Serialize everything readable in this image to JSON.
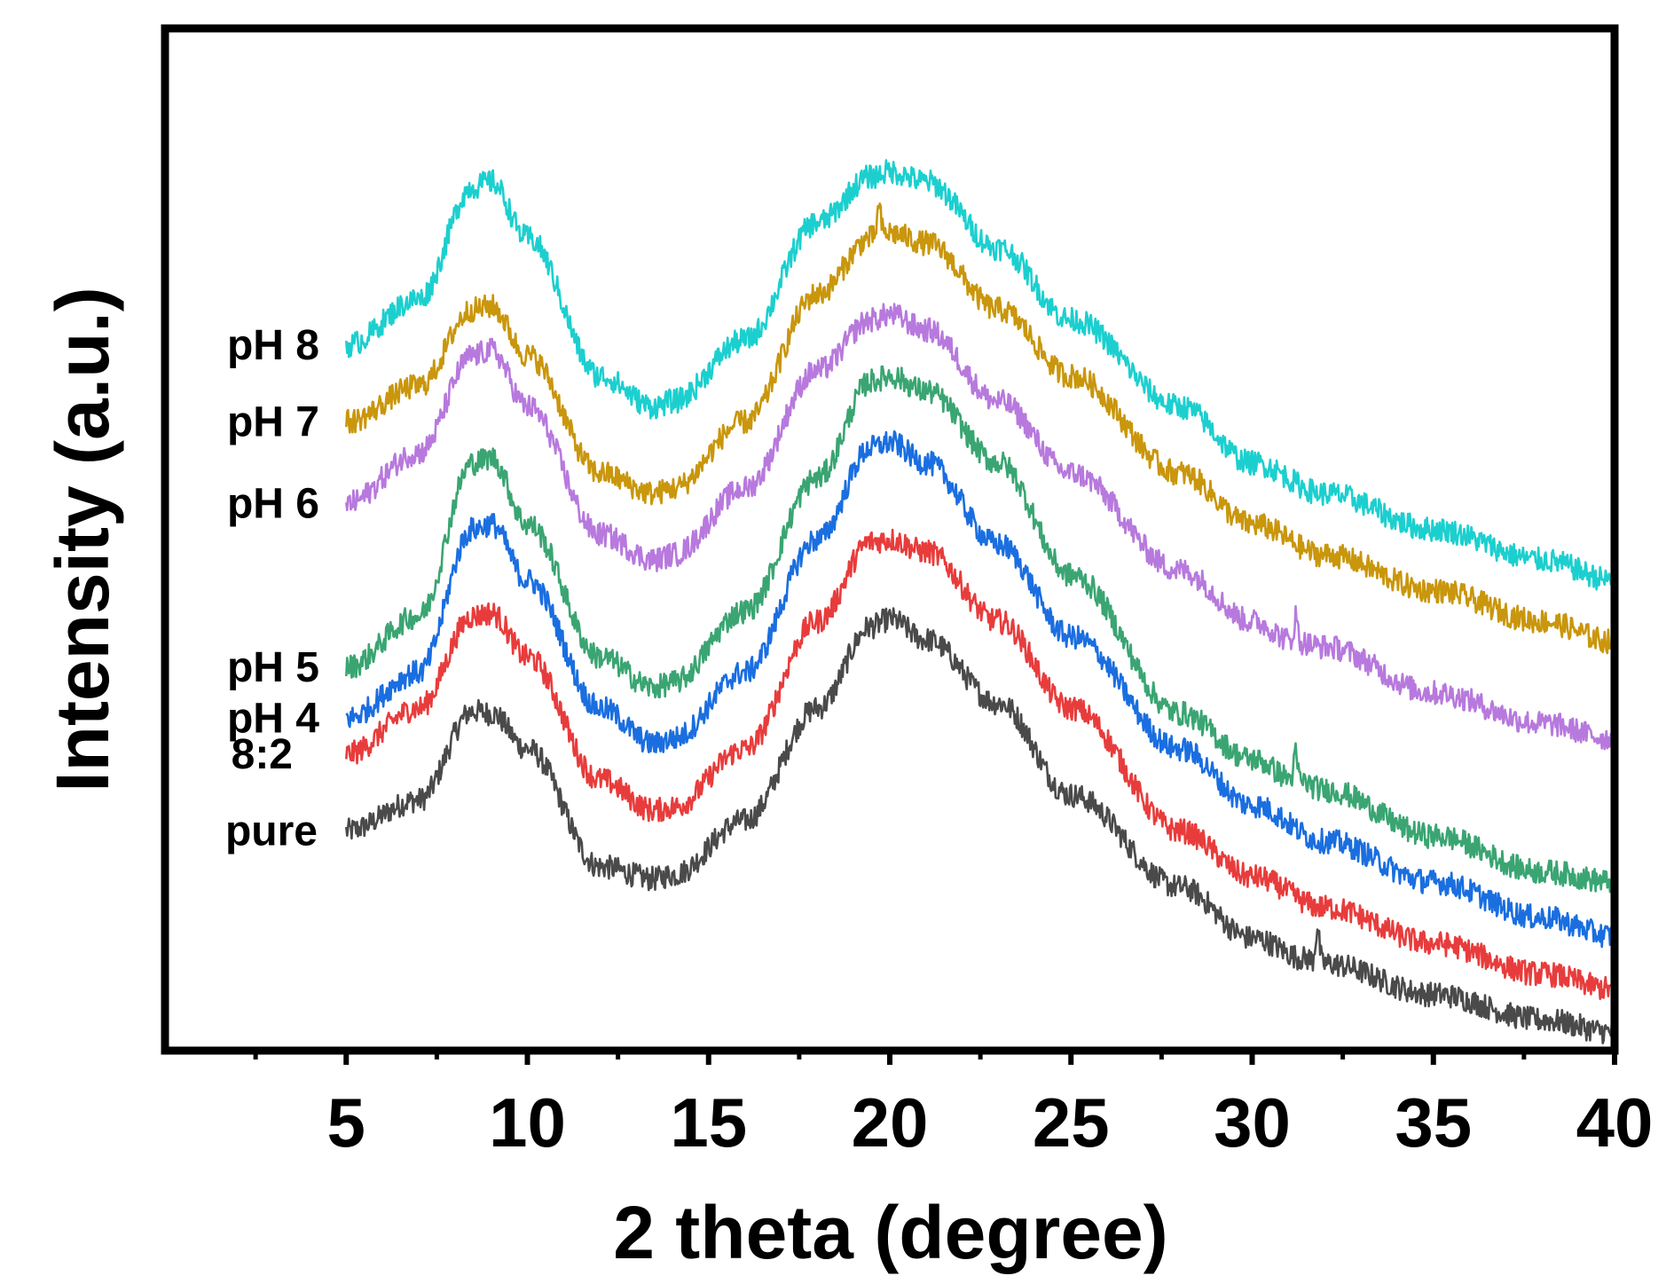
{
  "chart_data": {
    "type": "line",
    "title": "",
    "xlabel": "2 theta (degree)",
    "ylabel": "Intensity (a.u.)",
    "xlim": [
      0,
      40
    ],
    "ylim": [
      0,
      100
    ],
    "x_ticks": [
      5,
      10,
      15,
      20,
      25,
      30,
      35,
      40
    ],
    "x_tick_labels": [
      "5",
      "10",
      "15",
      "20",
      "25",
      "30",
      "35",
      "40"
    ],
    "minor_ticks": [
      2.5,
      7.5,
      12.5,
      17.5,
      22.5,
      27.5,
      32.5,
      37.5
    ],
    "x_range_plotted": [
      5,
      40
    ],
    "grid": false,
    "legend": "inline labels at left of traces",
    "y_units": "arbitrary (a.u.), traces vertically offset",
    "series": [
      {
        "name": "pure",
        "label": "pure",
        "color": "#4a4a4a",
        "offset": 0,
        "noise": 1.2,
        "x": [
          5,
          7,
          8.5,
          9,
          10,
          12,
          13.5,
          14,
          16,
          18,
          19.5,
          20,
          21,
          23,
          25,
          28,
          30,
          31.5,
          32,
          35,
          38,
          40
        ],
        "y": [
          21.5,
          24.5,
          33.2,
          33.0,
          29.5,
          18.0,
          16.8,
          17.2,
          22.5,
          33.5,
          41.5,
          42.2,
          40.2,
          34.0,
          25.0,
          16.0,
          11.0,
          9.0,
          8.5,
          5.5,
          3.0,
          1.8
        ],
        "spikes": [
          {
            "x": 31.8,
            "h": 3.5
          }
        ]
      },
      {
        "name": "8:2",
        "label": "8:2",
        "color": "#e83c3c",
        "offset": 0,
        "noise": 1.2,
        "x": [
          5,
          7,
          8.5,
          9,
          10,
          12,
          13.5,
          14,
          16,
          18,
          19.5,
          20,
          21,
          23,
          25,
          28,
          30,
          32,
          35,
          38,
          40
        ],
        "y": [
          29.0,
          33.5,
          42.5,
          42.8,
          38.5,
          26.5,
          23.5,
          23.8,
          29.5,
          42.0,
          49.8,
          50.0,
          48.8,
          42.0,
          33.5,
          21.5,
          17.0,
          14.0,
          10.5,
          7.5,
          6.0
        ]
      },
      {
        "name": "pH 4",
        "label": "pH 4",
        "color": "#1a6ee0",
        "offset": 0,
        "noise": 1.2,
        "x": [
          5,
          7,
          8.5,
          9,
          10,
          12,
          13.5,
          14,
          16,
          18,
          19.5,
          20,
          21,
          23,
          25,
          28,
          30,
          32,
          35,
          38,
          40
        ],
        "y": [
          32.5,
          37.0,
          51.0,
          51.5,
          46.0,
          33.5,
          30.0,
          30.5,
          37.0,
          50.0,
          59.0,
          59.5,
          57.5,
          49.5,
          40.5,
          29.5,
          24.0,
          20.5,
          16.5,
          13.0,
          11.2
        ]
      },
      {
        "name": "pH 5",
        "label": "pH 5",
        "color": "#3aa572",
        "offset": 0,
        "noise": 1.2,
        "x": [
          5,
          7,
          8.5,
          9,
          10,
          12,
          13.5,
          14,
          16,
          18,
          19.5,
          20,
          21,
          23,
          25,
          28,
          30,
          31.2,
          32,
          35,
          38,
          40
        ],
        "y": [
          37.5,
          42.5,
          57.5,
          58.0,
          51.5,
          38.5,
          35.5,
          36.0,
          43.0,
          56.0,
          65.5,
          66.0,
          64.5,
          57.5,
          46.5,
          33.0,
          28.5,
          26.5,
          25.5,
          21.0,
          17.5,
          16.5
        ],
        "spikes": [
          {
            "x": 31.2,
            "h": 2.5
          }
        ]
      },
      {
        "name": "pH 6",
        "label": "pH 6",
        "color": "#b779dd",
        "offset": 0,
        "noise": 1.2,
        "x": [
          5,
          7,
          8.5,
          9,
          10,
          12,
          13.5,
          14,
          16,
          18,
          19.5,
          20,
          21,
          23,
          25,
          28,
          30,
          31.2,
          32,
          35,
          38,
          40
        ],
        "y": [
          53.5,
          58.5,
          68.0,
          68.5,
          63.0,
          50.5,
          48.0,
          48.5,
          55.0,
          66.5,
          71.5,
          72.0,
          70.5,
          63.5,
          56.5,
          47.0,
          42.0,
          40.0,
          39.5,
          35.0,
          32.0,
          30.5
        ],
        "spikes": [
          {
            "x": 31.2,
            "h": 2.5
          }
        ]
      },
      {
        "name": "pH 7",
        "label": "pH 7",
        "color": "#c9960c",
        "offset": 0,
        "noise": 1.2,
        "x": [
          5,
          7,
          8.5,
          9,
          10,
          12,
          13.5,
          14,
          16,
          18,
          19.5,
          20,
          21,
          23,
          25,
          28,
          30,
          32,
          35,
          38,
          40
        ],
        "y": [
          61.5,
          65.0,
          72.5,
          72.8,
          68.0,
          56.5,
          54.5,
          55.0,
          61.5,
          74.0,
          79.5,
          80.0,
          79.0,
          72.5,
          66.0,
          56.5,
          51.5,
          48.5,
          45.0,
          42.0,
          40.0
        ],
        "spikes": [
          {
            "x": 19.7,
            "h": 3.0
          }
        ]
      },
      {
        "name": "pH 8",
        "label": "pH 8",
        "color": "#1ccfcf",
        "offset": 0,
        "noise": 1.2,
        "x": [
          5,
          7,
          8.5,
          9,
          10,
          12,
          13.5,
          14,
          16,
          18,
          19.5,
          20,
          21,
          23,
          25,
          28,
          30,
          32,
          35,
          38,
          40
        ],
        "y": [
          69.0,
          73.5,
          84.5,
          85.0,
          79.5,
          66.0,
          63.0,
          63.5,
          69.5,
          81.0,
          85.5,
          86.0,
          85.0,
          78.5,
          71.5,
          63.0,
          57.5,
          54.5,
          51.0,
          48.0,
          46.0
        ]
      }
    ],
    "label_anchor_x": 5
  }
}
